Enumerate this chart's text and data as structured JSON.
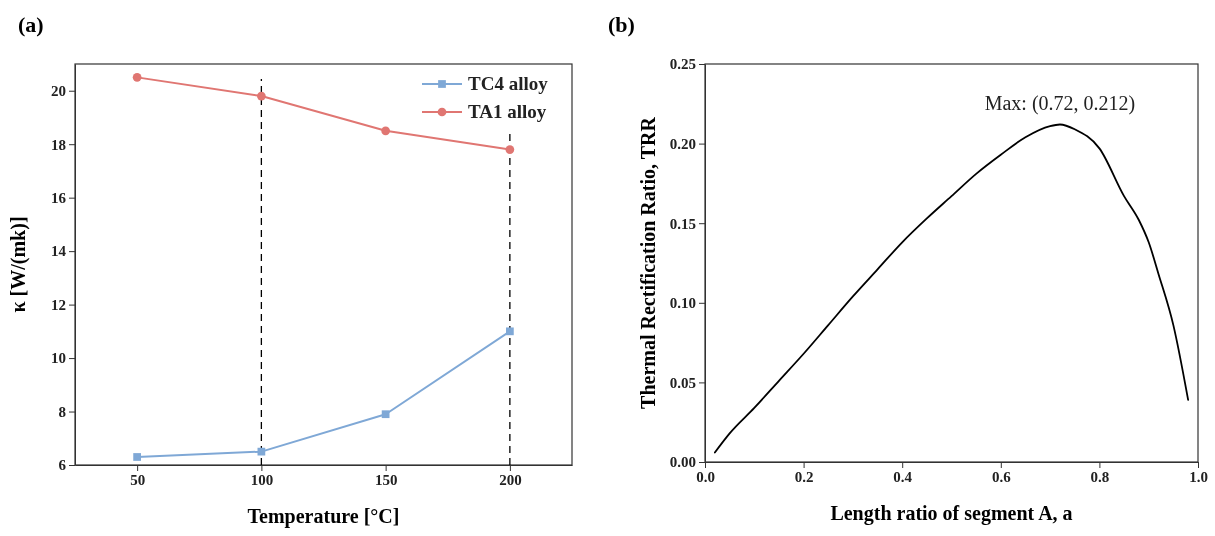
{
  "chart_data": [
    {
      "type": "line",
      "title": "(a)",
      "xlabel": "Temperature [°C]",
      "ylabel": "κ [W/(mk)]",
      "x": [
        50,
        100,
        150,
        200
      ],
      "xlim": [
        25,
        225
      ],
      "xticks": [
        50,
        100,
        150,
        200
      ],
      "ylim": [
        6,
        21
      ],
      "yticks": [
        6,
        8,
        10,
        12,
        14,
        16,
        18,
        20
      ],
      "legend": "top right",
      "grid": false,
      "series": [
        {
          "name": "TC4 alloy",
          "color": "#7fa8d6",
          "marker": "square",
          "values": [
            6.3,
            6.5,
            7.9,
            11.0
          ]
        },
        {
          "name": "TA1 alloy",
          "color": "#e07672",
          "marker": "circle",
          "values": [
            20.5,
            19.8,
            18.5,
            17.8
          ]
        }
      ],
      "ref_lines": [
        {
          "axis": "x",
          "value": 100,
          "color": "#000000",
          "line_style": "dashed"
        },
        {
          "axis": "x",
          "value": 200,
          "color": "#000000",
          "line_style": "dashed"
        }
      ]
    },
    {
      "type": "line",
      "title": "(b)",
      "xlabel": "Length ratio of segment A, a",
      "ylabel": "Thermal Rectification Ratio, TRR",
      "xlim": [
        0,
        1
      ],
      "xticks": [
        {
          "value": 0,
          "label": "0.0"
        },
        0.2,
        0.4,
        0.6,
        0.8,
        {
          "value": 1,
          "label": "1.0"
        }
      ],
      "ylim": [
        0,
        0.25
      ],
      "yticks": [
        {
          "value": 0,
          "label": "0.00"
        },
        0.05,
        {
          "value": 0.1,
          "label": "0.10"
        },
        0.15,
        {
          "value": 0.2,
          "label": "0.20"
        },
        0.25
      ],
      "grid": false,
      "marker": "none",
      "legend": false,
      "series": [
        {
          "color": "#000000",
          "x": [
            0.02,
            0.05,
            0.1,
            0.15,
            0.2,
            0.25,
            0.3,
            0.35,
            0.4,
            0.45,
            0.5,
            0.55,
            0.6,
            0.65,
            0.7,
            0.72,
            0.75,
            0.8,
            0.85,
            0.88,
            0.9,
            0.92,
            0.95,
            0.98
          ],
          "values": [
            0.006,
            0.018,
            0.034,
            0.051,
            0.068,
            0.086,
            0.104,
            0.121,
            0.138,
            0.153,
            0.167,
            0.181,
            0.193,
            0.204,
            0.211,
            0.212,
            0.209,
            0.197,
            0.167,
            0.152,
            0.138,
            0.118,
            0.086,
            0.039
          ]
        }
      ],
      "annotations": [
        {
          "text": "Max: (0.72, 0.212)",
          "x": 0.72,
          "y": 0.212
        }
      ]
    }
  ]
}
